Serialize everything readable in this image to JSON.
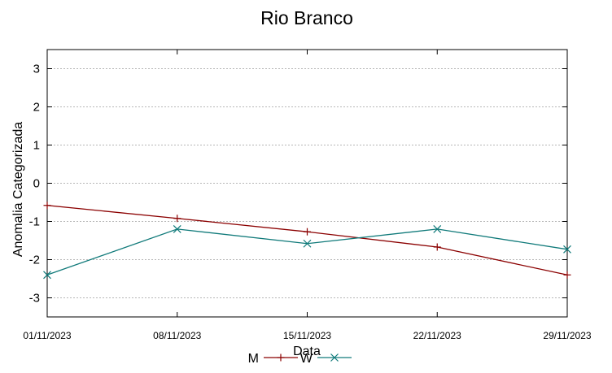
{
  "chart_data": {
    "type": "line",
    "title": "Rio Branco",
    "xlabel": "Data",
    "ylabel": "Anomalia Categorizada",
    "x": [
      "01/11/2023",
      "08/11/2023",
      "15/11/2023",
      "22/11/2023",
      "29/11/2023"
    ],
    "ylim": [
      -3.5,
      3.5
    ],
    "yticks": [
      -3,
      -2,
      -1,
      0,
      1,
      2,
      3
    ],
    "grid": true,
    "legend_position": "bottom",
    "series": [
      {
        "name": "M",
        "color": "#8b0000",
        "marker": "plus",
        "values": [
          -0.58,
          -0.92,
          -1.27,
          -1.67,
          -2.4
        ]
      },
      {
        "name": "W",
        "color": "#107a7a",
        "marker": "cross",
        "values": [
          -2.4,
          -1.2,
          -1.58,
          -1.2,
          -1.73
        ]
      }
    ]
  }
}
